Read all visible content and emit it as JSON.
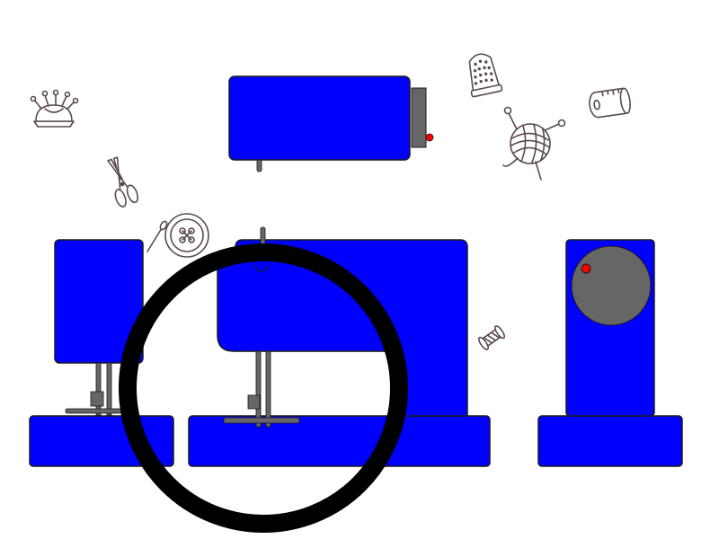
{
  "colors": {
    "background": "#ffffff",
    "machine_body": "#0000ff",
    "outline": "#1a1a1a",
    "metal": "#666666",
    "indicator": "#ff0000",
    "hoop": "#000000",
    "doodle_stroke": "#5a4a4a"
  },
  "scene": {
    "description_icons": [
      "pincushion-icon",
      "scissors-icon",
      "button-icon",
      "thimble-icon",
      "yarn-ball-icon",
      "tape-measure-icon",
      "bobbin-icon"
    ],
    "pieces": [
      "top-view-machine",
      "left-view-machine",
      "front-view-machine",
      "right-view-machine",
      "magnifier-hoop"
    ]
  }
}
